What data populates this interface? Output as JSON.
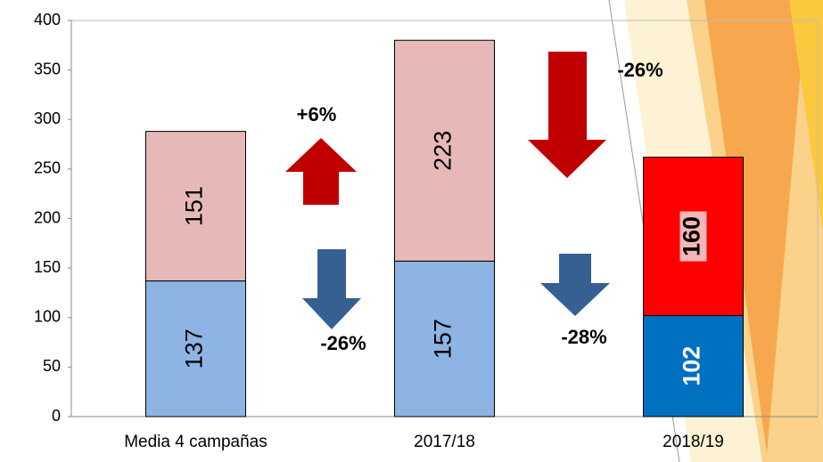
{
  "chart_data": {
    "type": "bar",
    "stacked": true,
    "categories": [
      "Media 4 campañas",
      "2017/18",
      "2018/19"
    ],
    "series": [
      {
        "values": [
          137,
          157,
          102
        ],
        "colors": [
          "#8eb4e3",
          "#8eb4e3",
          "#0070c0"
        ]
      },
      {
        "values": [
          151,
          223,
          160
        ],
        "colors": [
          "#e6b9b8",
          "#e6b9b8",
          "#ff0000"
        ]
      }
    ],
    "ylim": [
      0,
      400
    ],
    "yticks": [
      0,
      50,
      100,
      150,
      200,
      250,
      300,
      350,
      400
    ],
    "annotations": [
      {
        "text": "+6%"
      },
      {
        "text": "-26%"
      },
      {
        "text": "-26%"
      },
      {
        "text": "-28%"
      }
    ]
  }
}
